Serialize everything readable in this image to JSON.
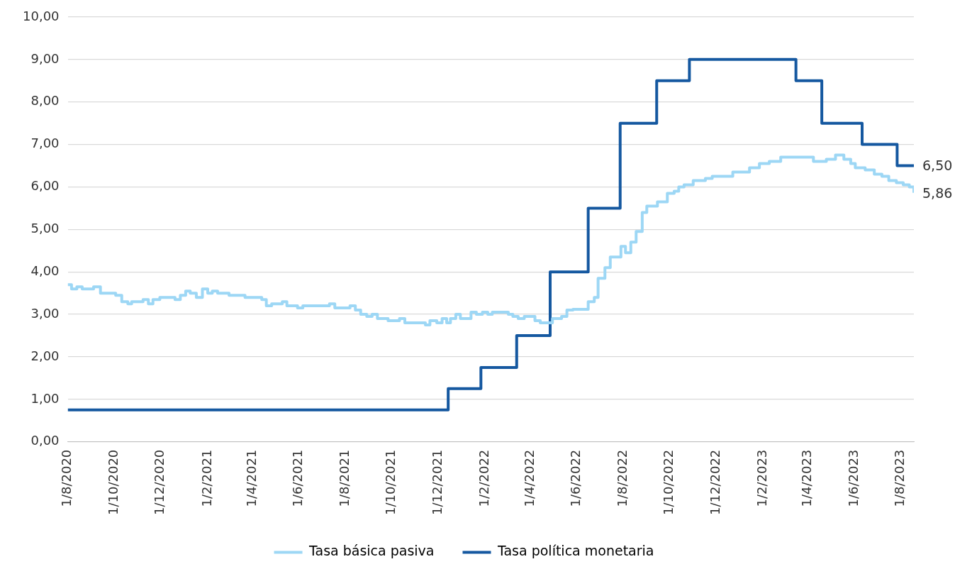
{
  "chart_data": {
    "type": "step",
    "xlim": [
      "2020-08-01",
      "2023-08-18"
    ],
    "xticks": [
      {
        "value": "2020-08-01",
        "label": "1/8/2020"
      },
      {
        "value": "2020-10-01",
        "label": "1/10/2020"
      },
      {
        "value": "2020-12-01",
        "label": "1/12/2020"
      },
      {
        "value": "2021-02-01",
        "label": "1/2/2021"
      },
      {
        "value": "2021-04-01",
        "label": "1/4/2021"
      },
      {
        "value": "2021-06-01",
        "label": "1/6/2021"
      },
      {
        "value": "2021-08-01",
        "label": "1/8/2021"
      },
      {
        "value": "2021-10-01",
        "label": "1/10/2021"
      },
      {
        "value": "2021-12-01",
        "label": "1/12/2021"
      },
      {
        "value": "2022-02-01",
        "label": "1/2/2022"
      },
      {
        "value": "2022-04-01",
        "label": "1/4/2022"
      },
      {
        "value": "2022-06-01",
        "label": "1/6/2022"
      },
      {
        "value": "2022-08-01",
        "label": "1/8/2022"
      },
      {
        "value": "2022-10-01",
        "label": "1/10/2022"
      },
      {
        "value": "2022-12-01",
        "label": "1/12/2022"
      },
      {
        "value": "2023-02-01",
        "label": "1/2/2023"
      },
      {
        "value": "2023-04-01",
        "label": "1/4/2023"
      },
      {
        "value": "2023-06-01",
        "label": "1/6/2023"
      },
      {
        "value": "2023-08-01",
        "label": "1/8/2023"
      }
    ],
    "ylim": [
      0,
      10
    ],
    "yticks": [
      {
        "value": 0,
        "label": "0,00"
      },
      {
        "value": 1,
        "label": "1,00"
      },
      {
        "value": 2,
        "label": "2,00"
      },
      {
        "value": 3,
        "label": "3,00"
      },
      {
        "value": 4,
        "label": "4,00"
      },
      {
        "value": 5,
        "label": "5,00"
      },
      {
        "value": 6,
        "label": "6,00"
      },
      {
        "value": 7,
        "label": "7,00"
      },
      {
        "value": 8,
        "label": "8,00"
      },
      {
        "value": 9,
        "label": "9,00"
      },
      {
        "value": 10,
        "label": "10,00"
      }
    ],
    "grid": "y",
    "legend": "bottom",
    "marker": "none",
    "line_style": "solid",
    "series": [
      {
        "name": "Tasa básica pasiva",
        "color": "#9dd7f5",
        "x": [
          "2020-08-01",
          "2020-08-06",
          "2020-08-13",
          "2020-08-20",
          "2020-09-04",
          "2020-09-13",
          "2020-10-03",
          "2020-10-11",
          "2020-10-19",
          "2020-10-24",
          "2020-11-08",
          "2020-11-15",
          "2020-11-21",
          "2020-11-30",
          "2020-12-20",
          "2020-12-27",
          "2021-01-03",
          "2021-01-09",
          "2021-01-17",
          "2021-01-25",
          "2021-02-01",
          "2021-02-07",
          "2021-02-14",
          "2021-03-01",
          "2021-03-22",
          "2021-04-13",
          "2021-04-19",
          "2021-04-26",
          "2021-05-10",
          "2021-05-16",
          "2021-05-30",
          "2021-06-06",
          "2021-07-11",
          "2021-07-18",
          "2021-08-07",
          "2021-08-14",
          "2021-08-21",
          "2021-08-29",
          "2021-09-05",
          "2021-09-12",
          "2021-09-26",
          "2021-10-11",
          "2021-10-18",
          "2021-11-14",
          "2021-11-20",
          "2021-11-29",
          "2021-12-06",
          "2021-12-12",
          "2021-12-17",
          "2021-12-24",
          "2021-12-30",
          "2022-01-13",
          "2022-01-20",
          "2022-01-28",
          "2022-02-04",
          "2022-02-10",
          "2022-03-03",
          "2022-03-09",
          "2022-03-16",
          "2022-03-24",
          "2022-04-07",
          "2022-04-14",
          "2022-04-30",
          "2022-05-12",
          "2022-05-19",
          "2022-05-27",
          "2022-06-16",
          "2022-06-24",
          "2022-06-29",
          "2022-07-08",
          "2022-07-15",
          "2022-07-29",
          "2022-08-04",
          "2022-08-11",
          "2022-08-18",
          "2022-08-26",
          "2022-09-01",
          "2022-09-15",
          "2022-09-28",
          "2022-10-07",
          "2022-10-13",
          "2022-10-20",
          "2022-11-01",
          "2022-11-17",
          "2022-11-26",
          "2022-12-23",
          "2023-01-14",
          "2023-01-27",
          "2023-02-09",
          "2023-02-24",
          "2023-03-15",
          "2023-04-08",
          "2023-04-25",
          "2023-05-07",
          "2023-05-18",
          "2023-05-27",
          "2023-06-02",
          "2023-06-15",
          "2023-06-27",
          "2023-07-07",
          "2023-07-16",
          "2023-07-26",
          "2023-08-04",
          "2023-08-12",
          "2023-08-18"
        ],
        "values": [
          3.7,
          3.6,
          3.65,
          3.6,
          3.65,
          3.5,
          3.45,
          3.3,
          3.25,
          3.3,
          3.35,
          3.25,
          3.35,
          3.4,
          3.35,
          3.45,
          3.55,
          3.5,
          3.4,
          3.6,
          3.5,
          3.55,
          3.5,
          3.45,
          3.4,
          3.35,
          3.2,
          3.25,
          3.3,
          3.2,
          3.15,
          3.2,
          3.25,
          3.15,
          3.2,
          3.1,
          3.0,
          2.95,
          3.0,
          2.9,
          2.85,
          2.9,
          2.8,
          2.75,
          2.85,
          2.8,
          2.9,
          2.8,
          2.9,
          3.0,
          2.9,
          3.05,
          3.0,
          3.05,
          3.0,
          3.05,
          3.0,
          2.95,
          2.9,
          2.95,
          2.85,
          2.8,
          2.9,
          2.95,
          3.1,
          3.12,
          3.3,
          3.4,
          3.85,
          4.1,
          4.35,
          4.6,
          4.45,
          4.7,
          4.95,
          5.4,
          5.55,
          5.65,
          5.85,
          5.9,
          6.0,
          6.05,
          6.15,
          6.2,
          6.25,
          6.35,
          6.45,
          6.55,
          6.6,
          6.7,
          6.7,
          6.6,
          6.65,
          6.75,
          6.65,
          6.55,
          6.45,
          6.4,
          6.3,
          6.25,
          6.15,
          6.1,
          6.05,
          6.0,
          5.86
        ],
        "value_labels": [
          null,
          null,
          null,
          null,
          null,
          null,
          null,
          null,
          null,
          null,
          null,
          null,
          null,
          null,
          null,
          null,
          null,
          null,
          null,
          null,
          null,
          null,
          null,
          null,
          null,
          null,
          null,
          null,
          null,
          null,
          null,
          null,
          null,
          null,
          null,
          null,
          null,
          null,
          null,
          null,
          null,
          null,
          null,
          null,
          null,
          null,
          null,
          null,
          null,
          null,
          null,
          null,
          null,
          null,
          null,
          null,
          null,
          null,
          null,
          null,
          null,
          null,
          null,
          null,
          null,
          null,
          null,
          null,
          null,
          null,
          null,
          null,
          null,
          null,
          null,
          null,
          null,
          null,
          null,
          null,
          null,
          null,
          null,
          null,
          null,
          null,
          null,
          null,
          null,
          null,
          null,
          null,
          null,
          null,
          null,
          null,
          null,
          null,
          null,
          null,
          null,
          null,
          null,
          null,
          "5,86"
        ]
      },
      {
        "name": "Tasa política monetaria",
        "color": "#1558a0",
        "x": [
          "2020-08-01",
          "2021-12-14",
          "2022-01-26",
          "2022-03-14",
          "2022-04-27",
          "2022-06-16",
          "2022-07-28",
          "2022-09-14",
          "2022-10-27",
          "2023-03-16",
          "2023-04-19",
          "2023-06-11",
          "2023-07-27",
          "2023-08-18"
        ],
        "values": [
          0.75,
          1.25,
          1.75,
          2.5,
          4.0,
          5.5,
          7.5,
          8.5,
          9.0,
          8.5,
          7.5,
          7.0,
          6.5,
          6.5
        ],
        "value_labels": [
          null,
          null,
          null,
          null,
          null,
          null,
          null,
          null,
          null,
          null,
          null,
          null,
          null,
          "6,50"
        ]
      }
    ]
  }
}
